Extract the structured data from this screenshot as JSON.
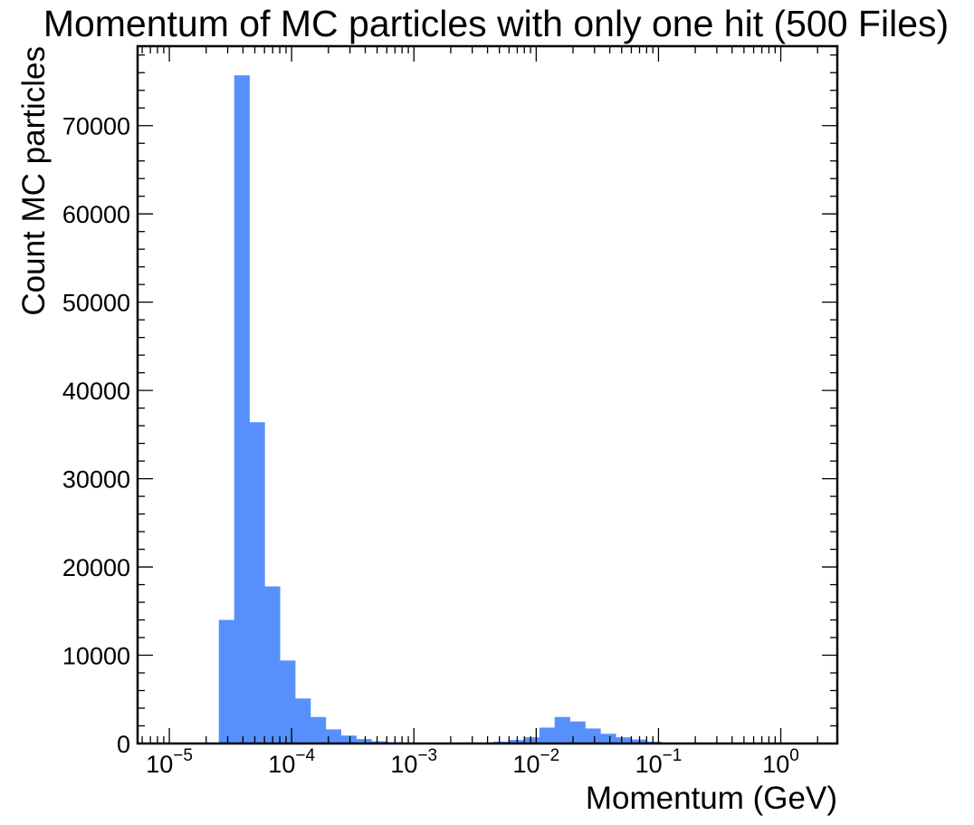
{
  "chart_data": {
    "type": "bar",
    "title": "Momentum of MC particles with only one hit (500 Files)",
    "xlabel": "Momentum (GeV)",
    "ylabel": "Count MC particles",
    "xscale": "log",
    "xlim": [
      5.5e-06,
      2.9
    ],
    "ylim": [
      0,
      79000
    ],
    "grid": false,
    "bar_color": "#5790fc",
    "y_ticks": [
      0,
      10000,
      20000,
      30000,
      40000,
      50000,
      60000,
      70000
    ],
    "x_ticks": [
      {
        "value": 1e-05,
        "base": "10",
        "exp": "−5"
      },
      {
        "value": 0.0001,
        "base": "10",
        "exp": "−4"
      },
      {
        "value": 0.001,
        "base": "10",
        "exp": "−3"
      },
      {
        "value": 0.01,
        "base": "10",
        "exp": "−2"
      },
      {
        "value": 0.1,
        "base": "10",
        "exp": "−1"
      },
      {
        "value": 1,
        "base": "10",
        "exp": "0"
      }
    ],
    "bins": [
      {
        "x0": 2.54e-05,
        "x1": 3.39e-05,
        "count": 14000
      },
      {
        "x0": 3.39e-05,
        "x1": 4.51e-05,
        "count": 75700
      },
      {
        "x0": 4.51e-05,
        "x1": 6.01e-05,
        "count": 36400
      },
      {
        "x0": 6.01e-05,
        "x1": 8.01e-05,
        "count": 17800
      },
      {
        "x0": 8.01e-05,
        "x1": 0.0001068,
        "count": 9400
      },
      {
        "x0": 0.0001068,
        "x1": 0.0001424,
        "count": 5100
      },
      {
        "x0": 0.0001424,
        "x1": 0.0001898,
        "count": 3000
      },
      {
        "x0": 0.0001898,
        "x1": 0.000253,
        "count": 1600
      },
      {
        "x0": 0.000253,
        "x1": 0.000337,
        "count": 900
      },
      {
        "x0": 0.000337,
        "x1": 0.000449,
        "count": 500
      },
      {
        "x0": 0.000449,
        "x1": 0.000599,
        "count": 250
      },
      {
        "x0": 0.000599,
        "x1": 0.000799,
        "count": 150
      },
      {
        "x0": 0.000799,
        "x1": 0.001065,
        "count": 80
      },
      {
        "x0": 0.001065,
        "x1": 0.00142,
        "count": 60
      },
      {
        "x0": 0.00142,
        "x1": 0.00189,
        "count": 50
      },
      {
        "x0": 0.00189,
        "x1": 0.00252,
        "count": 50
      },
      {
        "x0": 0.00252,
        "x1": 0.00336,
        "count": 60
      },
      {
        "x0": 0.00336,
        "x1": 0.00448,
        "count": 100
      },
      {
        "x0": 0.00448,
        "x1": 0.00597,
        "count": 200
      },
      {
        "x0": 0.00597,
        "x1": 0.00796,
        "count": 400
      },
      {
        "x0": 0.00796,
        "x1": 0.01061,
        "count": 700
      },
      {
        "x0": 0.01061,
        "x1": 0.01414,
        "count": 1800
      },
      {
        "x0": 0.01414,
        "x1": 0.01885,
        "count": 3000
      },
      {
        "x0": 0.01885,
        "x1": 0.02513,
        "count": 2500
      },
      {
        "x0": 0.02513,
        "x1": 0.0335,
        "count": 1700
      },
      {
        "x0": 0.0335,
        "x1": 0.04467,
        "count": 1100
      },
      {
        "x0": 0.04467,
        "x1": 0.05955,
        "count": 700
      },
      {
        "x0": 0.05955,
        "x1": 0.0794,
        "count": 450
      },
      {
        "x0": 0.0794,
        "x1": 0.1058,
        "count": 200
      },
      {
        "x0": 0.1058,
        "x1": 0.141,
        "count": 100
      },
      {
        "x0": 0.141,
        "x1": 0.188,
        "count": 60
      },
      {
        "x0": 0.188,
        "x1": 0.251,
        "count": 40
      },
      {
        "x0": 0.251,
        "x1": 0.335,
        "count": 30
      },
      {
        "x0": 0.335,
        "x1": 0.446,
        "count": 20
      },
      {
        "x0": 0.446,
        "x1": 0.595,
        "count": 15
      },
      {
        "x0": 0.595,
        "x1": 0.793,
        "count": 10
      },
      {
        "x0": 0.793,
        "x1": 1.057,
        "count": 8
      },
      {
        "x0": 1.057,
        "x1": 1.409,
        "count": 5
      },
      {
        "x0": 1.409,
        "x1": 1.878,
        "count": 3
      }
    ]
  }
}
